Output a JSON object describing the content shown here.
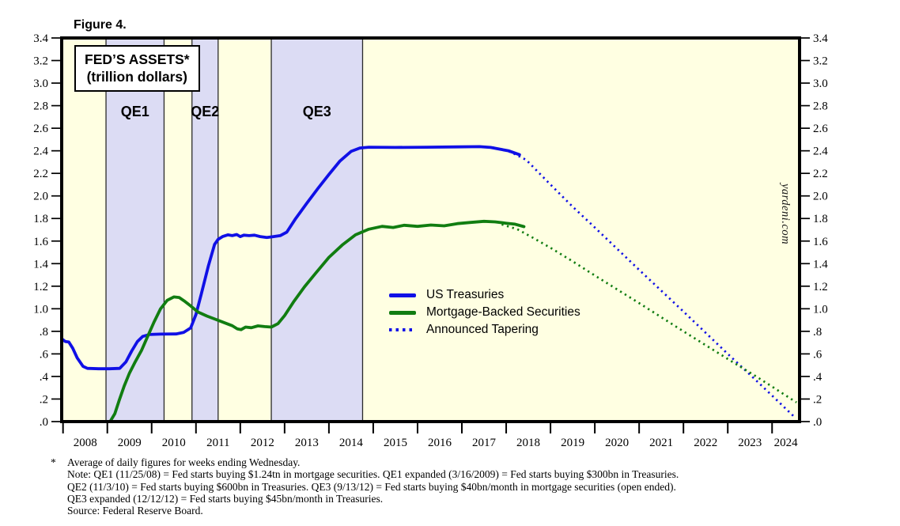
{
  "figure": {
    "title": "Figure 4."
  },
  "chart_data": {
    "type": "line",
    "title": "FED’S ASSETS*",
    "subtitle": "(trillion dollars)",
    "watermark": "yardeni.com",
    "x_axis": {
      "min": 2007.97,
      "max": 2024.62,
      "tick_years": [
        2008,
        2009,
        2010,
        2011,
        2012,
        2013,
        2014,
        2015,
        2016,
        2017,
        2018,
        2019,
        2020,
        2021,
        2022,
        2023,
        2024
      ],
      "tick_labels": [
        "2008",
        "2009",
        "2010",
        "2011",
        "2012",
        "2013",
        "2014",
        "2015",
        "2016",
        "2017",
        "2018",
        "2019",
        "2020",
        "2021",
        "2022",
        "2023",
        "2024"
      ]
    },
    "y_axis": {
      "min": 0,
      "max": 3.4,
      "tick_step": 0.2,
      "tick_labels": [
        ".0",
        ".2",
        ".4",
        ".6",
        ".8",
        "1.0",
        "1.2",
        "1.4",
        "1.6",
        "1.8",
        "2.0",
        "2.2",
        "2.4",
        "2.6",
        "2.8",
        "3.0",
        "3.2",
        "3.4"
      ],
      "sides": "both"
    },
    "grid": false,
    "bands": [
      {
        "label": "QE1",
        "start": 2008.97,
        "end": 2010.28
      },
      {
        "label": "QE2",
        "start": 2010.91,
        "end": 2011.5
      },
      {
        "label": "QE3",
        "start": 2012.7,
        "end": 2014.76
      }
    ],
    "series": [
      {
        "name": "US Treasuries",
        "style": "solid",
        "color": "#1010e6",
        "points": [
          [
            2007.97,
            0.735
          ],
          [
            2008.05,
            0.71
          ],
          [
            2008.13,
            0.705
          ],
          [
            2008.22,
            0.65
          ],
          [
            2008.32,
            0.565
          ],
          [
            2008.45,
            0.49
          ],
          [
            2008.55,
            0.472
          ],
          [
            2008.8,
            0.468
          ],
          [
            2009.05,
            0.468
          ],
          [
            2009.28,
            0.472
          ],
          [
            2009.42,
            0.53
          ],
          [
            2009.55,
            0.625
          ],
          [
            2009.68,
            0.71
          ],
          [
            2009.8,
            0.755
          ],
          [
            2009.95,
            0.772
          ],
          [
            2010.2,
            0.775
          ],
          [
            2010.55,
            0.777
          ],
          [
            2010.72,
            0.79
          ],
          [
            2010.88,
            0.83
          ],
          [
            2011.0,
            0.95
          ],
          [
            2011.12,
            1.13
          ],
          [
            2011.28,
            1.38
          ],
          [
            2011.42,
            1.57
          ],
          [
            2011.5,
            1.615
          ],
          [
            2011.6,
            1.64
          ],
          [
            2011.72,
            1.655
          ],
          [
            2011.82,
            1.648
          ],
          [
            2011.92,
            1.658
          ],
          [
            2012.0,
            1.64
          ],
          [
            2012.08,
            1.652
          ],
          [
            2012.2,
            1.648
          ],
          [
            2012.32,
            1.652
          ],
          [
            2012.45,
            1.64
          ],
          [
            2012.6,
            1.632
          ],
          [
            2012.75,
            1.64
          ],
          [
            2012.9,
            1.648
          ],
          [
            2013.05,
            1.68
          ],
          [
            2013.25,
            1.8
          ],
          [
            2013.5,
            1.935
          ],
          [
            2013.75,
            2.065
          ],
          [
            2014.0,
            2.19
          ],
          [
            2014.25,
            2.31
          ],
          [
            2014.5,
            2.395
          ],
          [
            2014.7,
            2.425
          ],
          [
            2014.9,
            2.432
          ],
          [
            2015.5,
            2.43
          ],
          [
            2016.2,
            2.432
          ],
          [
            2016.9,
            2.435
          ],
          [
            2017.4,
            2.437
          ],
          [
            2017.65,
            2.43
          ],
          [
            2017.85,
            2.415
          ],
          [
            2018.05,
            2.4
          ],
          [
            2018.3,
            2.365
          ]
        ]
      },
      {
        "name": "Mortgage-Backed Securities",
        "style": "solid",
        "color": "#117d11",
        "points": [
          [
            2009.07,
            0.005
          ],
          [
            2009.17,
            0.07
          ],
          [
            2009.27,
            0.19
          ],
          [
            2009.38,
            0.315
          ],
          [
            2009.5,
            0.43
          ],
          [
            2009.63,
            0.53
          ],
          [
            2009.77,
            0.63
          ],
          [
            2009.9,
            0.745
          ],
          [
            2010.05,
            0.88
          ],
          [
            2010.2,
            1.0
          ],
          [
            2010.35,
            1.075
          ],
          [
            2010.5,
            1.105
          ],
          [
            2010.62,
            1.1
          ],
          [
            2010.75,
            1.065
          ],
          [
            2010.88,
            1.025
          ],
          [
            2011.05,
            0.97
          ],
          [
            2011.25,
            0.935
          ],
          [
            2011.45,
            0.905
          ],
          [
            2011.65,
            0.875
          ],
          [
            2011.82,
            0.85
          ],
          [
            2011.93,
            0.822
          ],
          [
            2012.02,
            0.815
          ],
          [
            2012.12,
            0.838
          ],
          [
            2012.25,
            0.832
          ],
          [
            2012.4,
            0.848
          ],
          [
            2012.55,
            0.842
          ],
          [
            2012.7,
            0.838
          ],
          [
            2012.85,
            0.868
          ],
          [
            2013.0,
            0.94
          ],
          [
            2013.2,
            1.06
          ],
          [
            2013.45,
            1.195
          ],
          [
            2013.7,
            1.315
          ],
          [
            2014.0,
            1.455
          ],
          [
            2014.3,
            1.565
          ],
          [
            2014.6,
            1.655
          ],
          [
            2014.9,
            1.705
          ],
          [
            2015.2,
            1.73
          ],
          [
            2015.45,
            1.72
          ],
          [
            2015.7,
            1.74
          ],
          [
            2016.0,
            1.73
          ],
          [
            2016.3,
            1.742
          ],
          [
            2016.6,
            1.735
          ],
          [
            2016.9,
            1.755
          ],
          [
            2017.2,
            1.765
          ],
          [
            2017.5,
            1.775
          ],
          [
            2017.75,
            1.77
          ],
          [
            2018.0,
            1.758
          ],
          [
            2018.2,
            1.75
          ],
          [
            2018.4,
            1.728
          ]
        ]
      },
      {
        "name": "US Treasuries announced tapering",
        "style": "dotted",
        "color": "#1010e6",
        "points": [
          [
            2017.7,
            2.43
          ],
          [
            2018.1,
            2.39
          ],
          [
            2018.45,
            2.32
          ],
          [
            2019.0,
            2.1
          ],
          [
            2019.5,
            1.905
          ],
          [
            2020.0,
            1.72
          ],
          [
            2021.0,
            1.345
          ],
          [
            2022.0,
            0.975
          ],
          [
            2023.0,
            0.6
          ],
          [
            2023.6,
            0.38
          ],
          [
            2024.0,
            0.23
          ],
          [
            2024.52,
            0.035
          ]
        ]
      },
      {
        "name": "Mortgage-Backed Securities announced tapering",
        "style": "dotted",
        "color": "#117d11",
        "points": [
          [
            2017.9,
            1.748
          ],
          [
            2018.25,
            1.705
          ],
          [
            2018.6,
            1.63
          ],
          [
            2019.0,
            1.54
          ],
          [
            2019.5,
            1.42
          ],
          [
            2020.0,
            1.295
          ],
          [
            2021.0,
            1.05
          ],
          [
            2022.0,
            0.8
          ],
          [
            2023.0,
            0.555
          ],
          [
            2023.6,
            0.41
          ],
          [
            2024.0,
            0.31
          ],
          [
            2024.55,
            0.17
          ]
        ]
      }
    ],
    "legend": [
      {
        "label": "US Treasuries",
        "color": "#1010e6",
        "style": "solid"
      },
      {
        "label": "Mortgage-Backed Securities",
        "color": "#117d11",
        "style": "solid"
      },
      {
        "label": "Announced Tapering",
        "color": "#1010e6",
        "style": "dotted"
      }
    ],
    "legend_position": "center-right inside plot",
    "colors": {
      "plot_bg": "#ffffe2",
      "band_bg": "#dcdcf4",
      "band_edge": "#2a2a2a",
      "frame": "#000000"
    }
  },
  "footnote": {
    "marker": "*",
    "lines": [
      "Average of daily figures for weeks ending Wednesday.",
      "Note: QE1 (11/25/08) = Fed starts buying $1.24tn in mortgage securities. QE1 expanded (3/16/2009) = Fed starts buying $300bn in Treasuries.",
      "QE2 (11/3/10) = Fed starts buying $600bn in Treasuries. QE3 (9/13/12) = Fed starts buying $40bn/month in mortgage securities (open ended).",
      "QE3 expanded (12/12/12) = Fed starts buying $45bn/month in Treasuries.",
      "Source: Federal Reserve Board."
    ]
  }
}
